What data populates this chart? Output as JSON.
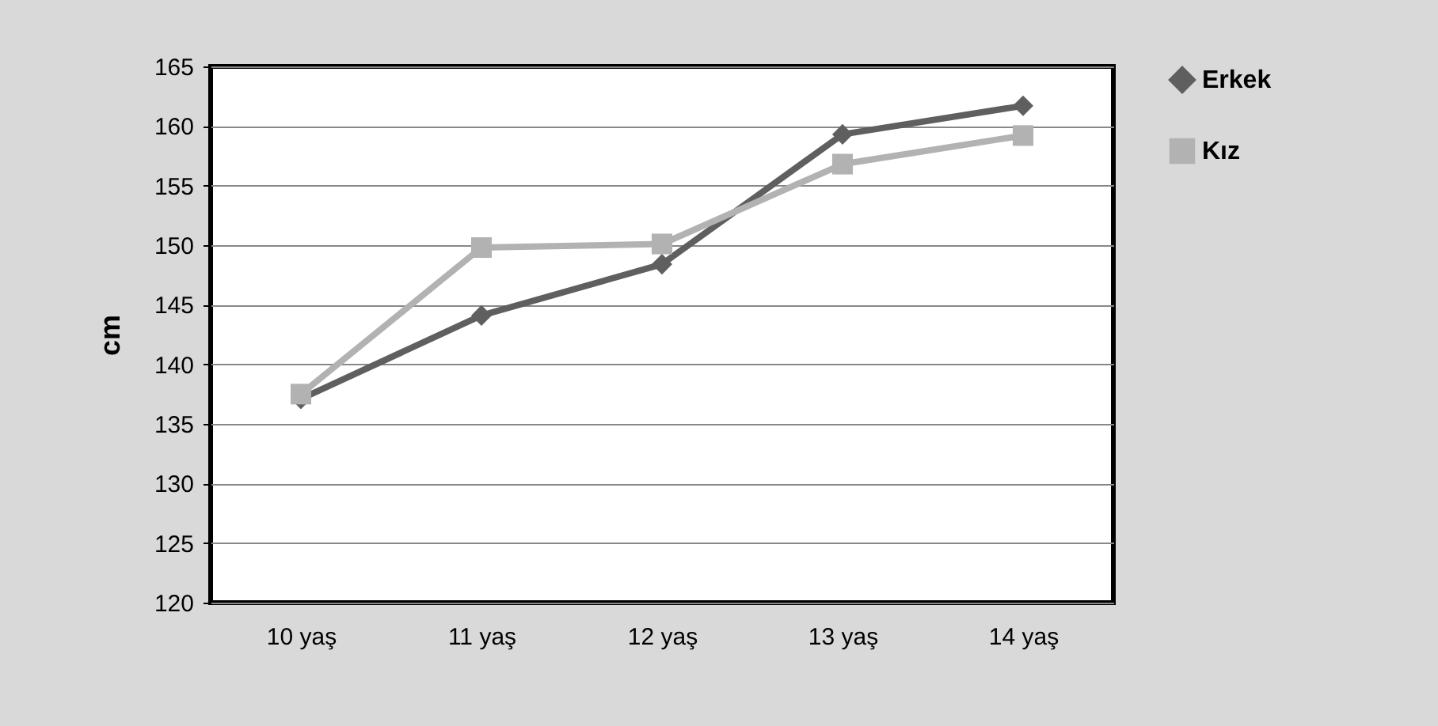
{
  "chart_data": {
    "type": "line",
    "ylabel": "cm",
    "categories": [
      "10 yaş",
      "11 yaş",
      "12 yaş",
      "13 yaş",
      "14 yaş"
    ],
    "series": [
      {
        "name": "Erkek",
        "color": "#5f5f5f",
        "marker": "diamond",
        "values": [
          137.1,
          144.1,
          148.4,
          159.3,
          161.7
        ]
      },
      {
        "name": "Kız",
        "color": "#b2b2b2",
        "marker": "square",
        "values": [
          137.5,
          149.8,
          150.1,
          156.8,
          159.2
        ]
      }
    ],
    "ylim": [
      120,
      165
    ],
    "yticks": [
      120,
      125,
      130,
      135,
      140,
      145,
      150,
      155,
      160,
      165
    ],
    "grid": "y",
    "legend": "right"
  }
}
